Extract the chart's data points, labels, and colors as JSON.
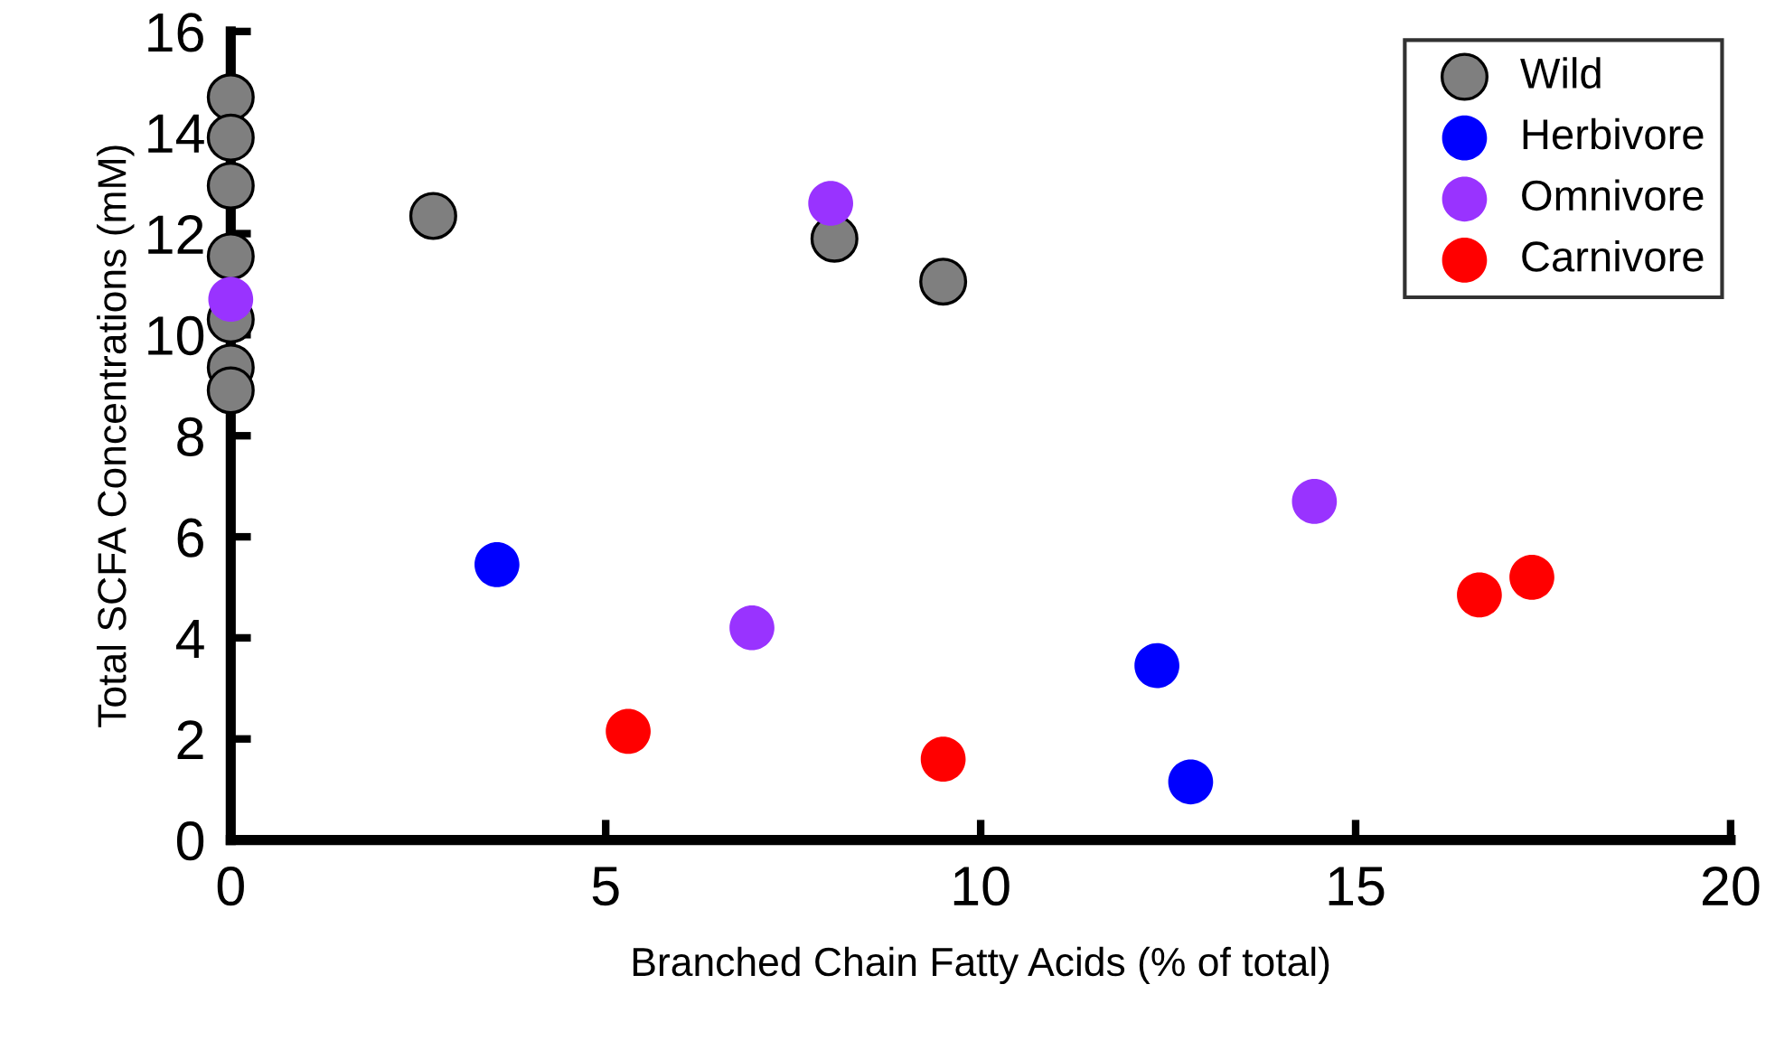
{
  "chart_data": {
    "type": "scatter",
    "xlabel": "Branched Chain Fatty Acids (% of total)",
    "ylabel": "Total SCFA Concentrations (mM)",
    "xlim": [
      0,
      20
    ],
    "xticks": [
      0,
      5,
      10,
      15,
      20
    ],
    "ylim": [
      0,
      16
    ],
    "yticks": [
      0,
      2,
      4,
      6,
      8,
      10,
      12,
      14,
      16
    ],
    "grid": false,
    "legend": "top right",
    "marker": "circle",
    "series": [
      {
        "name": "Wild",
        "color": "#7f7f7f",
        "x": [
          0,
          0,
          0,
          0,
          0,
          0,
          0,
          2.7,
          8.05,
          9.5
        ],
        "values": [
          14.7,
          13.9,
          12.95,
          11.55,
          10.3,
          9.35,
          8.9,
          12.35,
          11.9,
          11.05
        ]
      },
      {
        "name": "Herbivore",
        "color": "#0000ff",
        "x": [
          3.55,
          12.35,
          12.8
        ],
        "values": [
          5.45,
          3.45,
          1.15
        ]
      },
      {
        "name": "Omnivore",
        "color": "#9933ff",
        "x": [
          0,
          8.0,
          6.95,
          14.45
        ],
        "values": [
          10.7,
          12.6,
          4.2,
          6.7
        ]
      },
      {
        "name": "Carnivore",
        "color": "#ff0000",
        "x": [
          5.3,
          9.5,
          16.65,
          17.35
        ],
        "values": [
          2.15,
          1.6,
          4.85,
          5.2
        ]
      }
    ]
  }
}
